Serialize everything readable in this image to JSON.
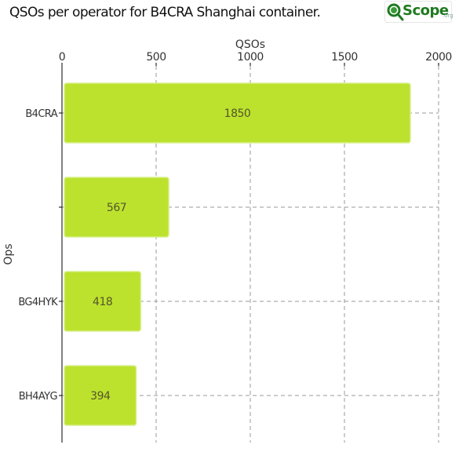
{
  "title": "QSOs per operator for B4CRA Shanghai container.",
  "logo": {
    "brand": "Scope",
    "tld": ".org",
    "colors": {
      "ring": "#1f7a1f",
      "text": "#1f7a1f"
    }
  },
  "chart_data": {
    "type": "bar",
    "orientation": "horizontal",
    "xlabel": "QSOs",
    "ylabel": "Ops",
    "categories": [
      "B4CRA",
      "",
      "BG4HYK",
      "BH4AYG"
    ],
    "values": [
      1850,
      567,
      418,
      394
    ],
    "value_labels": [
      "1850",
      "567",
      "418",
      "394"
    ],
    "xlim": [
      0,
      2000
    ],
    "xticks": [
      0,
      500,
      1000,
      1500,
      2000
    ],
    "xtick_labels": [
      "0",
      "500",
      "1000",
      "1500",
      "2000"
    ],
    "x_axis_position": "top",
    "grid": true,
    "grid_style": "dashed",
    "bar_color": "#bce22e",
    "bar_edge_color": "#d8ef8c",
    "label_color": "#55552a"
  }
}
